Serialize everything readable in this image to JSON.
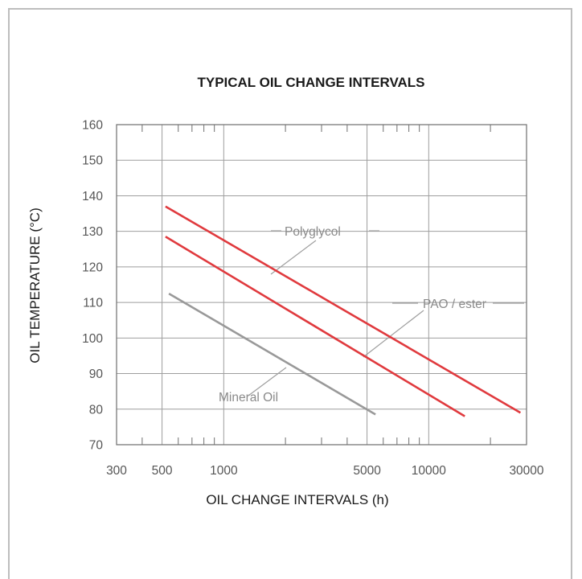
{
  "chart_data": {
    "type": "line",
    "title": "TYPICAL OIL CHANGE INTERVALS",
    "xlabel": "OIL CHANGE INTERVALS (h)",
    "ylabel": "OIL TEMPERATURE (°C)",
    "xscale": "log",
    "xlim": [
      300,
      30000
    ],
    "ylim": [
      70,
      160
    ],
    "grid": true,
    "x_ticks": [
      300,
      500,
      1000,
      5000,
      10000,
      30000
    ],
    "x_tick_labels": [
      "300",
      "500",
      "1000",
      "5000",
      "10000",
      "30000"
    ],
    "y_ticks": [
      70,
      80,
      90,
      100,
      110,
      120,
      130,
      140,
      150,
      160
    ],
    "series": [
      {
        "name": "Polyglycol",
        "color": "#e03a3e",
        "x": [
          520,
          28000
        ],
        "y": [
          137,
          79
        ]
      },
      {
        "name": "PAO / ester",
        "color": "#e03a3e",
        "x": [
          520,
          15000
        ],
        "y": [
          128.5,
          78
        ]
      },
      {
        "name": "Mineral Oil",
        "color": "#999999",
        "x": [
          540,
          5500
        ],
        "y": [
          112.5,
          78.5
        ]
      }
    ],
    "annotations": [
      {
        "text": "Polyglycol",
        "series": "Polyglycol"
      },
      {
        "text": "PAO / ester",
        "series": "PAO / ester"
      },
      {
        "text": "Mineral Oil",
        "series": "Mineral Oil"
      }
    ]
  }
}
